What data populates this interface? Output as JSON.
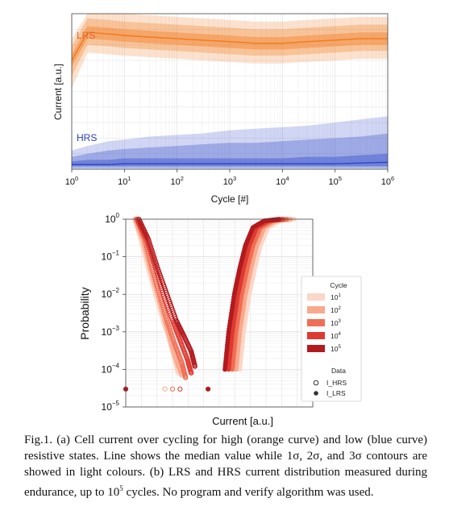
{
  "figure": {
    "caption": {
      "part1": "Fig.1. (a) Cell current over cycling for high (orange curve) and low (blue curve) resistive states. Line shows the median value while 1",
      "sigma": "σ",
      "part2": ", 2",
      "part3": ", and 3",
      "part4": " contours are showed in light colours. (b) LRS and HRS current distribution measured during endurance, up to 10",
      "sup": "5",
      "part5": " cycles. No program and verify algorithm was used."
    }
  },
  "chart_data": [
    {
      "type": "area",
      "panel": "a",
      "xlabel": "Cycle [#]",
      "ylabel": "Current [a.u.]",
      "xscale": "log",
      "xlim": [
        1,
        1000000
      ],
      "ylim": [
        0,
        1
      ],
      "x_tick_labels": [
        {
          "base": "10",
          "exp": "0"
        },
        {
          "base": "10",
          "exp": "1"
        },
        {
          "base": "10",
          "exp": "2"
        },
        {
          "base": "10",
          "exp": "3"
        },
        {
          "base": "10",
          "exp": "4"
        },
        {
          "base": "10",
          "exp": "5"
        },
        {
          "base": "10",
          "exp": "6"
        }
      ],
      "grid": true,
      "annotations": [
        {
          "text": "LRS",
          "color": "#e8622a"
        },
        {
          "text": "HRS",
          "color": "#2a3ec4"
        }
      ],
      "x": [
        1,
        2,
        5,
        10,
        30,
        100,
        300,
        1000,
        3000,
        10000,
        30000,
        100000,
        300000,
        1000000
      ],
      "series": [
        {
          "state": "LRS",
          "color": "#f07a1e",
          "median": [
            0.7,
            0.88,
            0.87,
            0.86,
            0.85,
            0.84,
            0.83,
            0.82,
            0.81,
            0.81,
            0.82,
            0.83,
            0.84,
            0.84
          ],
          "sigma1": [
            [
              0.66,
              0.74
            ],
            [
              0.84,
              0.92
            ],
            [
              0.83,
              0.91
            ],
            [
              0.82,
              0.9
            ],
            [
              0.81,
              0.89
            ],
            [
              0.8,
              0.88
            ],
            [
              0.79,
              0.87
            ],
            [
              0.78,
              0.86
            ],
            [
              0.77,
              0.85
            ],
            [
              0.77,
              0.85
            ],
            [
              0.78,
              0.86
            ],
            [
              0.79,
              0.87
            ],
            [
              0.8,
              0.88
            ],
            [
              0.8,
              0.88
            ]
          ],
          "sigma2": [
            [
              0.6,
              0.79
            ],
            [
              0.8,
              0.97
            ],
            [
              0.79,
              0.96
            ],
            [
              0.78,
              0.95
            ],
            [
              0.77,
              0.94
            ],
            [
              0.76,
              0.93
            ],
            [
              0.75,
              0.92
            ],
            [
              0.74,
              0.91
            ],
            [
              0.73,
              0.9
            ],
            [
              0.73,
              0.9
            ],
            [
              0.74,
              0.91
            ],
            [
              0.75,
              0.92
            ],
            [
              0.76,
              0.93
            ],
            [
              0.76,
              0.93
            ]
          ],
          "sigma3": [
            [
              0.52,
              0.84
            ],
            [
              0.75,
              1.0
            ],
            [
              0.74,
              1.0
            ],
            [
              0.73,
              1.0
            ],
            [
              0.72,
              0.99
            ],
            [
              0.71,
              0.98
            ],
            [
              0.7,
              0.97
            ],
            [
              0.69,
              0.96
            ],
            [
              0.68,
              0.95
            ],
            [
              0.68,
              0.95
            ],
            [
              0.69,
              0.96
            ],
            [
              0.7,
              0.97
            ],
            [
              0.71,
              0.98
            ],
            [
              0.71,
              0.98
            ]
          ]
        },
        {
          "state": "HRS",
          "color": "#2a45c8",
          "median": [
            0.03,
            0.03,
            0.03,
            0.035,
            0.035,
            0.035,
            0.035,
            0.035,
            0.035,
            0.035,
            0.035,
            0.035,
            0.04,
            0.045
          ],
          "sigma1": [
            [
              0.02,
              0.05
            ],
            [
              0.02,
              0.06
            ],
            [
              0.02,
              0.06
            ],
            [
              0.02,
              0.07
            ],
            [
              0.02,
              0.07
            ],
            [
              0.02,
              0.07
            ],
            [
              0.02,
              0.07
            ],
            [
              0.02,
              0.07
            ],
            [
              0.02,
              0.07
            ],
            [
              0.02,
              0.07
            ],
            [
              0.02,
              0.08
            ],
            [
              0.02,
              0.08
            ],
            [
              0.02,
              0.09
            ],
            [
              0.02,
              0.1
            ]
          ],
          "sigma2": [
            [
              0.01,
              0.08
            ],
            [
              0.01,
              0.1
            ],
            [
              0.01,
              0.12
            ],
            [
              0.01,
              0.13
            ],
            [
              0.01,
              0.14
            ],
            [
              0.01,
              0.15
            ],
            [
              0.01,
              0.16
            ],
            [
              0.01,
              0.17
            ],
            [
              0.01,
              0.17
            ],
            [
              0.01,
              0.18
            ],
            [
              0.01,
              0.19
            ],
            [
              0.01,
              0.2
            ],
            [
              0.01,
              0.21
            ],
            [
              0.01,
              0.23
            ]
          ],
          "sigma3": [
            [
              0.0,
              0.12
            ],
            [
              0.0,
              0.15
            ],
            [
              0.0,
              0.18
            ],
            [
              0.0,
              0.19
            ],
            [
              0.0,
              0.21
            ],
            [
              0.0,
              0.22
            ],
            [
              0.0,
              0.23
            ],
            [
              0.0,
              0.25
            ],
            [
              0.0,
              0.26
            ],
            [
              0.0,
              0.27
            ],
            [
              0.0,
              0.28
            ],
            [
              0.0,
              0.3
            ],
            [
              0.0,
              0.32
            ],
            [
              0.0,
              0.34
            ]
          ]
        }
      ]
    },
    {
      "type": "scatter",
      "panel": "b",
      "xlabel": "Current [a.u.]",
      "ylabel": "Probability",
      "yscale": "log",
      "ylim": [
        1e-05,
        1
      ],
      "y_tick_labels": [
        {
          "base": "10",
          "exp": "0"
        },
        {
          "base": "10",
          "exp": "−1"
        },
        {
          "base": "10",
          "exp": "−2"
        },
        {
          "base": "10",
          "exp": "−3"
        },
        {
          "base": "10",
          "exp": "−4"
        },
        {
          "base": "10",
          "exp": "−5"
        }
      ],
      "grid": true,
      "legend": {
        "placement": "right",
        "cycle_title": "Cycle",
        "cycles": [
          {
            "base": "10",
            "exp": "1",
            "color": "#fcd6c6"
          },
          {
            "base": "10",
            "exp": "2",
            "color": "#f8a98c"
          },
          {
            "base": "10",
            "exp": "3",
            "color": "#ef6e55"
          },
          {
            "base": "10",
            "exp": "4",
            "color": "#de3a31"
          },
          {
            "base": "10",
            "exp": "5",
            "color": "#b21a1e"
          }
        ],
        "data_title": "Data",
        "data": [
          {
            "label": "I_HRS",
            "marker": "open-circle"
          },
          {
            "label": "I_LRS",
            "marker": "filled-circle"
          }
        ]
      },
      "hrs_curves": [
        {
          "cycle_index": 0,
          "points": [
            [
              0.05,
              1.0
            ],
            [
              0.08,
              0.3
            ],
            [
              0.12,
              0.05
            ],
            [
              0.16,
              0.01
            ],
            [
              0.2,
              0.002
            ],
            [
              0.23,
              0.0007
            ],
            [
              0.26,
              0.0002
            ],
            [
              0.28,
              8e-05
            ]
          ]
        },
        {
          "cycle_index": 1,
          "points": [
            [
              0.05,
              1.0
            ],
            [
              0.09,
              0.3
            ],
            [
              0.13,
              0.05
            ],
            [
              0.17,
              0.01
            ],
            [
              0.21,
              0.002
            ],
            [
              0.24,
              0.0006
            ],
            [
              0.27,
              0.00018
            ],
            [
              0.3,
              7e-05
            ]
          ]
        },
        {
          "cycle_index": 2,
          "points": [
            [
              0.06,
              1.0
            ],
            [
              0.1,
              0.3
            ],
            [
              0.14,
              0.05
            ],
            [
              0.18,
              0.01
            ],
            [
              0.22,
              0.002
            ],
            [
              0.26,
              0.0005
            ],
            [
              0.3,
              0.00015
            ],
            [
              0.32,
              6e-05
            ]
          ]
        },
        {
          "cycle_index": 3,
          "points": [
            [
              0.06,
              1.0
            ],
            [
              0.11,
              0.3
            ],
            [
              0.16,
              0.05
            ],
            [
              0.2,
              0.01
            ],
            [
              0.25,
              0.002
            ],
            [
              0.29,
              0.0006
            ],
            [
              0.33,
              0.00018
            ],
            [
              0.35,
              8e-05
            ]
          ]
        },
        {
          "cycle_index": 4,
          "points": [
            [
              0.07,
              1.0
            ],
            [
              0.12,
              0.3
            ],
            [
              0.17,
              0.05
            ],
            [
              0.22,
              0.01
            ],
            [
              0.27,
              0.002
            ],
            [
              0.31,
              0.0008
            ],
            [
              0.35,
              0.0003
            ],
            [
              0.37,
              0.00012
            ]
          ]
        }
      ],
      "lrs_curves": [
        {
          "cycle_index": 0,
          "points": [
            [
              0.61,
              0.0001
            ],
            [
              0.63,
              0.001
            ],
            [
              0.66,
              0.01
            ],
            [
              0.69,
              0.05
            ],
            [
              0.72,
              0.2
            ],
            [
              0.76,
              0.6
            ],
            [
              0.82,
              0.9
            ],
            [
              0.9,
              1.0
            ]
          ]
        },
        {
          "cycle_index": 1,
          "points": [
            [
              0.59,
              0.0001
            ],
            [
              0.61,
              0.001
            ],
            [
              0.64,
              0.01
            ],
            [
              0.67,
              0.05
            ],
            [
              0.7,
              0.2
            ],
            [
              0.74,
              0.6
            ],
            [
              0.8,
              0.9
            ],
            [
              0.88,
              1.0
            ]
          ]
        },
        {
          "cycle_index": 2,
          "points": [
            [
              0.57,
              0.0001
            ],
            [
              0.59,
              0.001
            ],
            [
              0.62,
              0.01
            ],
            [
              0.65,
              0.05
            ],
            [
              0.68,
              0.2
            ],
            [
              0.72,
              0.6
            ],
            [
              0.78,
              0.9
            ],
            [
              0.86,
              1.0
            ]
          ]
        },
        {
          "cycle_index": 3,
          "points": [
            [
              0.55,
              0.0001
            ],
            [
              0.57,
              0.001
            ],
            [
              0.6,
              0.01
            ],
            [
              0.63,
              0.05
            ],
            [
              0.66,
              0.2
            ],
            [
              0.7,
              0.6
            ],
            [
              0.76,
              0.9
            ],
            [
              0.84,
              1.0
            ]
          ]
        },
        {
          "cycle_index": 4,
          "points": [
            [
              0.53,
              0.0001
            ],
            [
              0.55,
              0.001
            ],
            [
              0.58,
              0.01
            ],
            [
              0.61,
              0.05
            ],
            [
              0.64,
              0.2
            ],
            [
              0.68,
              0.6
            ],
            [
              0.74,
              0.9
            ],
            [
              0.82,
              1.0
            ]
          ]
        }
      ],
      "outliers": [
        {
          "x": 0.0,
          "y": 3e-05,
          "cycle_index": 4,
          "marker": "filled-circle"
        },
        {
          "x": 0.21,
          "y": 3e-05,
          "cycle_index": 1,
          "marker": "open-circle"
        },
        {
          "x": 0.25,
          "y": 3e-05,
          "cycle_index": 2,
          "marker": "open-circle"
        },
        {
          "x": 0.29,
          "y": 3e-05,
          "cycle_index": 3,
          "marker": "open-circle"
        },
        {
          "x": 0.44,
          "y": 3e-05,
          "cycle_index": 4,
          "marker": "filled-circle"
        }
      ]
    }
  ]
}
